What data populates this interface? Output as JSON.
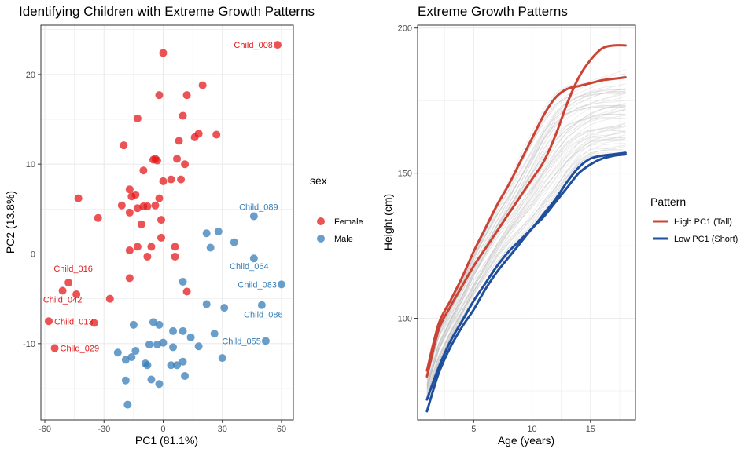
{
  "colors": {
    "female": "#E41A1C",
    "male": "#377EB8",
    "tall": "#CB4335",
    "short": "#1F4E9C",
    "bg_lines": "#BDBDBD",
    "grid": "#EBEBEB",
    "axis_text": "#4D4D4D"
  },
  "chart_data": [
    {
      "type": "scatter",
      "title": "Identifying Children with Extreme Growth Patterns",
      "xlabel": "PC1 (81.1%)",
      "ylabel": "PC2 (13.8%)",
      "xlim": [
        -62,
        66
      ],
      "ylim": [
        -18.5,
        25.5
      ],
      "xticks": [
        -60,
        -30,
        0,
        30,
        60
      ],
      "xtick_labels": [
        "-60",
        "-30",
        "0",
        "30",
        "60"
      ],
      "yticks": [
        -10,
        0,
        10,
        20
      ],
      "ytick_labels": [
        "-10",
        "0",
        "10",
        "20"
      ],
      "grid": true,
      "legend": {
        "title": "sex",
        "position": "right",
        "entries": [
          "Female",
          "Male"
        ]
      },
      "series": [
        {
          "name": "Female",
          "points": [
            [
              0,
              22.4
            ],
            [
              58,
              23.3
            ],
            [
              20,
              18.8
            ],
            [
              -2,
              17.7
            ],
            [
              12,
              17.7
            ],
            [
              -13,
              15.1
            ],
            [
              10,
              15.4
            ],
            [
              -20,
              12.1
            ],
            [
              18,
              13.4
            ],
            [
              16,
              13.0
            ],
            [
              27,
              13.3
            ],
            [
              8,
              12.6
            ],
            [
              -5,
              10.5
            ],
            [
              -4,
              10.6
            ],
            [
              -3,
              10.4
            ],
            [
              7,
              10.6
            ],
            [
              11,
              10.0
            ],
            [
              -10,
              9.3
            ],
            [
              0,
              8.1
            ],
            [
              4,
              8.3
            ],
            [
              9,
              8.3
            ],
            [
              -17,
              7.2
            ],
            [
              -16,
              6.4
            ],
            [
              -14,
              6.6
            ],
            [
              -2,
              6.2
            ],
            [
              -43,
              6.2
            ],
            [
              -21,
              5.4
            ],
            [
              -10,
              5.3
            ],
            [
              -8,
              5.3
            ],
            [
              -4,
              5.4
            ],
            [
              -13,
              5.1
            ],
            [
              -17,
              4.6
            ],
            [
              -33,
              4.0
            ],
            [
              -1,
              3.8
            ],
            [
              -11,
              3.3
            ],
            [
              -1,
              1.8
            ],
            [
              -13,
              0.8
            ],
            [
              -6,
              0.8
            ],
            [
              6,
              0.8
            ],
            [
              -17,
              0.4
            ],
            [
              -8,
              -0.3
            ],
            [
              6,
              -0.3
            ],
            [
              -17,
              -2.7
            ],
            [
              -48,
              -3.2
            ],
            [
              -51,
              -4.1
            ],
            [
              -44,
              -4.5
            ],
            [
              12,
              -4.2
            ],
            [
              -27,
              -5.0
            ],
            [
              -58,
              -7.5
            ],
            [
              -35,
              -7.7
            ],
            [
              -55,
              -10.5
            ]
          ]
        },
        {
          "name": "Male",
          "points": [
            [
              46,
              4.2
            ],
            [
              28,
              2.5
            ],
            [
              22,
              2.3
            ],
            [
              36,
              1.3
            ],
            [
              24,
              0.7
            ],
            [
              46,
              -0.5
            ],
            [
              60,
              -3.4
            ],
            [
              10,
              -3.1
            ],
            [
              50,
              -5.7
            ],
            [
              22,
              -5.6
            ],
            [
              31,
              -6.0
            ],
            [
              -15,
              -7.9
            ],
            [
              -5,
              -7.6
            ],
            [
              -2,
              -7.9
            ],
            [
              5,
              -8.6
            ],
            [
              10,
              -8.6
            ],
            [
              26,
              -8.9
            ],
            [
              52,
              -9.7
            ],
            [
              14,
              -9.3
            ],
            [
              -7,
              -10.1
            ],
            [
              -3,
              -10.1
            ],
            [
              0,
              -9.9
            ],
            [
              5,
              -10.4
            ],
            [
              18,
              -10.3
            ],
            [
              -14,
              -10.8
            ],
            [
              -23,
              -11.0
            ],
            [
              -16,
              -11.5
            ],
            [
              -19,
              -11.8
            ],
            [
              -8,
              -12.4
            ],
            [
              -9,
              -12.2
            ],
            [
              4,
              -12.4
            ],
            [
              7,
              -12.4
            ],
            [
              10,
              -12.0
            ],
            [
              30,
              -11.6
            ],
            [
              11,
              -13.6
            ],
            [
              -6,
              -14.0
            ],
            [
              -19,
              -14.1
            ],
            [
              -2,
              -14.5
            ],
            [
              -18,
              -16.8
            ]
          ]
        }
      ],
      "annotations": [
        {
          "label": "Child_008",
          "x": 58,
          "y": 23.3,
          "series": "Female"
        },
        {
          "label": "Child_016",
          "x": -48,
          "y": -3.2,
          "series": "Female"
        },
        {
          "label": "Child_042",
          "x": -51,
          "y": -4.1,
          "series": "Female"
        },
        {
          "label": "Child_013",
          "x": -58,
          "y": -7.5,
          "series": "Female"
        },
        {
          "label": "Child_029",
          "x": -55,
          "y": -10.5,
          "series": "Female"
        },
        {
          "label": "Child_089",
          "x": 46,
          "y": 4.2,
          "series": "Male"
        },
        {
          "label": "Child_064",
          "x": 46,
          "y": -0.5,
          "series": "Male"
        },
        {
          "label": "Child_083",
          "x": 60,
          "y": -3.4,
          "series": "Male"
        },
        {
          "label": "Child_086",
          "x": 50,
          "y": -5.7,
          "series": "Male"
        },
        {
          "label": "Child_055",
          "x": 52,
          "y": -9.7,
          "series": "Male"
        }
      ]
    },
    {
      "type": "line",
      "title": "Extreme Growth Patterns",
      "xlabel": "Age (years)",
      "ylabel": "Height (cm)",
      "xlim": [
        0.2,
        18.85
      ],
      "ylim": [
        65,
        201
      ],
      "xticks": [
        5,
        10,
        15
      ],
      "xtick_labels": [
        "5",
        "10",
        "15"
      ],
      "yticks": [
        100,
        150,
        200
      ],
      "ytick_labels": [
        "100",
        "150",
        "200"
      ],
      "grid": true,
      "legend": {
        "title": "Pattern",
        "position": "right",
        "entries": [
          "High PC1 (Tall)",
          "Low PC1 (Short)"
        ]
      },
      "series": [
        {
          "name": "High PC1 (Tall)",
          "x": [
            1,
            2,
            3,
            4,
            5,
            6,
            7,
            8,
            9,
            10,
            11,
            12,
            13,
            14,
            15,
            16,
            17,
            18
          ],
          "y": [
            80,
            96,
            104,
            111,
            118,
            124,
            130,
            136,
            142,
            148,
            154,
            163,
            174,
            183,
            189,
            193,
            194,
            194
          ]
        },
        {
          "name": "High PC1 (Tall)",
          "x": [
            1,
            2,
            3,
            4,
            5,
            6,
            7,
            8,
            9,
            10,
            11,
            12,
            13,
            14,
            15,
            16,
            17,
            18
          ],
          "y": [
            82,
            98,
            106,
            114,
            123,
            131,
            139,
            146,
            154,
            162,
            170,
            176,
            179,
            180,
            181,
            182,
            182.5,
            183
          ]
        },
        {
          "name": "Low PC1 (Short)",
          "x": [
            1,
            2,
            3,
            4,
            5,
            6,
            7,
            8,
            9,
            10,
            11,
            12,
            13,
            14,
            15,
            16,
            17,
            18
          ],
          "y": [
            68,
            81,
            90,
            97,
            103,
            110,
            116,
            121,
            126,
            131,
            135,
            140,
            145,
            150,
            153,
            155,
            156,
            156.5
          ]
        },
        {
          "name": "Low PC1 (Short)",
          "x": [
            1,
            2,
            3,
            4,
            5,
            6,
            7,
            8,
            9,
            10,
            11,
            12,
            13,
            14,
            15,
            16,
            17,
            18
          ],
          "y": [
            72,
            83,
            92,
            99,
            106,
            112,
            118,
            123,
            127,
            131,
            136,
            141,
            147,
            152,
            155,
            156,
            156.5,
            157
          ]
        }
      ]
    }
  ]
}
